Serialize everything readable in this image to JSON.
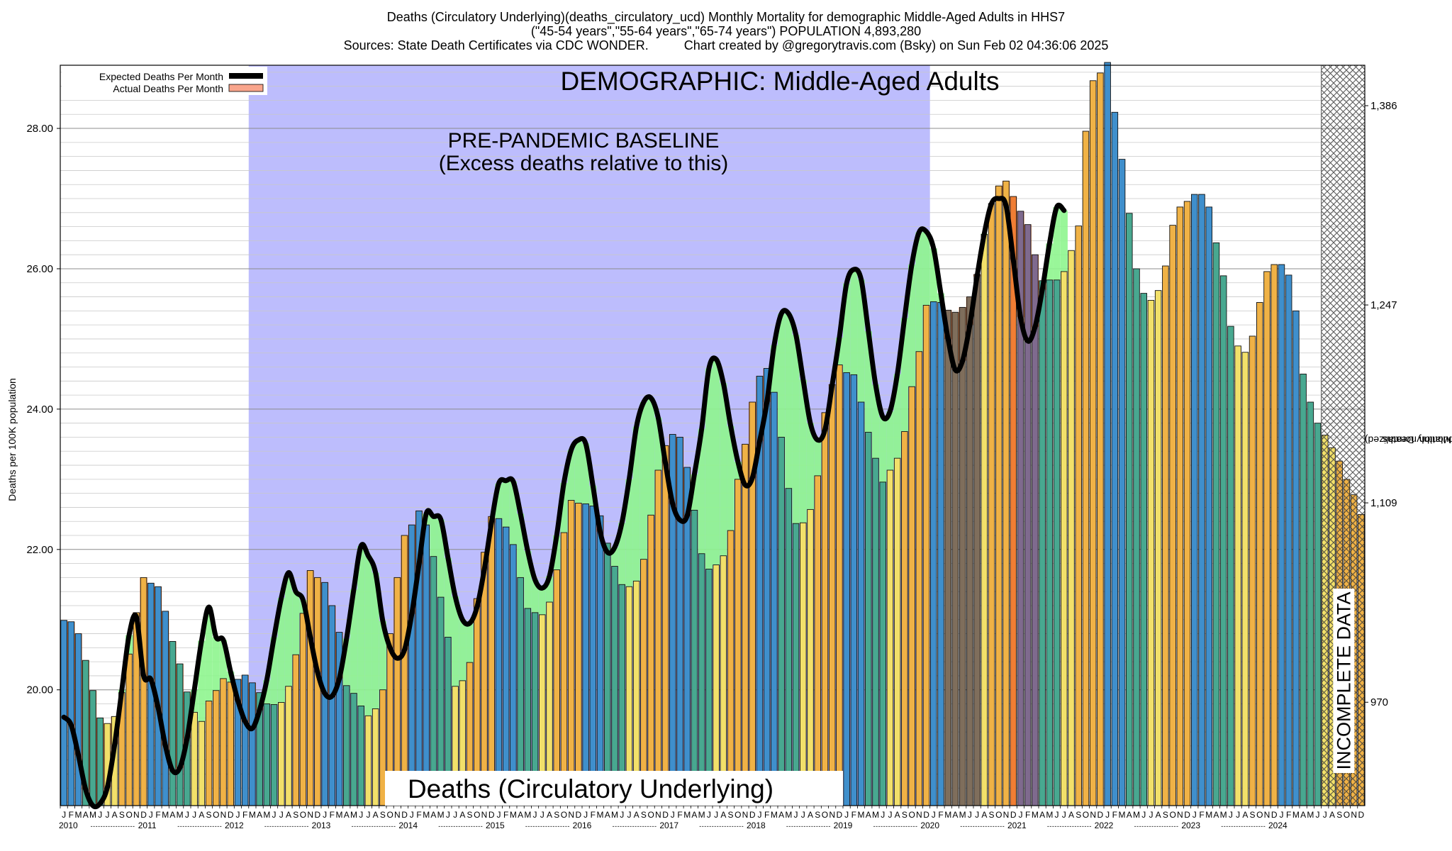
{
  "header": {
    "line1": "Deaths (Circulatory Underlying)(deaths_circulatory_ucd) Monthly Mortality for demographic Middle-Aged Adults in HHS7",
    "line2": "(\"45-54 years\",\"55-64 years\",\"65-74 years\") POPULATION 4,893,280",
    "line3": "Sources: State Death Certificates via CDC WONDER.          Chart created by @gregorytravis.com (Bsky) on Sun Feb 02 04:36:06 2025"
  },
  "colors": {
    "baseline_region": "#bdbdfd",
    "excess": "#fc7a30",
    "deficit": "#8ef58e",
    "expected_line": "#000000",
    "incomplete_hatch": "#444444"
  },
  "chart_data": {
    "type": "bar",
    "title": "Deaths (Circulatory Underlying)",
    "demographic_label": "DEMOGRAPHIC: Middle-Aged Adults",
    "baseline_label_1": "PRE-PANDEMIC BASELINE",
    "baseline_label_2": "(Excess deaths relative to this)",
    "incomplete_label": "INCOMPLETE DATA",
    "ylabel": "Deaths per 100K population",
    "ylabel_right_1": "Total Monthly Deaths",
    "ylabel_right_2": "(2023 population normalized)",
    "ylim": [
      18.35,
      28.9
    ],
    "yticks_left": [
      "20.00",
      "22.00",
      "24.00",
      "26.00",
      "28.00"
    ],
    "yticks_left_values": [
      20,
      22,
      24,
      26,
      28
    ],
    "yticks_right": [
      "970",
      "1,109",
      "1,247",
      "1,386"
    ],
    "yticks_right_values": [
      19.823,
      22.664,
      25.484,
      28.324
    ],
    "grid": true,
    "legend_position": "top-left",
    "legend": [
      "Expected Deaths Per Month",
      "Actual Deaths Per Month"
    ],
    "month_letters": [
      "J",
      "F",
      "M",
      "A",
      "M",
      "J",
      "J",
      "A",
      "S",
      "O",
      "N",
      "D"
    ],
    "years": [
      "2010",
      "2011",
      "2012",
      "2013",
      "2014",
      "2015",
      "2016",
      "2017",
      "2018",
      "2019",
      "2020",
      "2021",
      "2022",
      "2023",
      "2024"
    ],
    "start": "2010-01",
    "baseline_period": [
      "2012-03",
      "2019-12"
    ],
    "incomplete_from": "2024-07",
    "actual": [
      20.99,
      20.97,
      20.8,
      20.42,
      19.99,
      19.6,
      19.52,
      19.62,
      19.96,
      20.51,
      21.1,
      21.6,
      21.52,
      21.47,
      21.12,
      20.69,
      20.37,
      19.97,
      19.68,
      19.55,
      19.84,
      19.99,
      20.16,
      20.11,
      20.15,
      20.21,
      20.1,
      19.96,
      19.8,
      19.79,
      19.82,
      20.05,
      20.5,
      21.09,
      21.7,
      21.6,
      21.53,
      21.2,
      20.82,
      20.06,
      19.95,
      19.77,
      19.63,
      19.73,
      20.0,
      20.8,
      21.6,
      22.2,
      22.35,
      22.55,
      22.35,
      21.9,
      21.32,
      20.75,
      20.05,
      20.13,
      20.39,
      21.3,
      21.96,
      22.47,
      22.44,
      22.32,
      22.07,
      21.6,
      21.16,
      21.1,
      21.07,
      21.25,
      21.71,
      22.24,
      22.7,
      22.66,
      22.65,
      22.62,
      22.48,
      22.09,
      21.76,
      21.5,
      21.47,
      21.55,
      21.86,
      22.49,
      23.13,
      23.48,
      23.64,
      23.6,
      23.17,
      22.56,
      21.94,
      21.72,
      21.78,
      21.91,
      22.27,
      23.0,
      23.5,
      24.1,
      24.47,
      24.58,
      24.24,
      23.6,
      22.87,
      22.37,
      22.38,
      22.57,
      23.05,
      23.95,
      24.35,
      24.63,
      24.52,
      24.49,
      24.1,
      23.67,
      23.3,
      22.96,
      23.13,
      23.3,
      23.68,
      24.32,
      24.82,
      25.48,
      25.53,
      25.52,
      25.41,
      25.38,
      25.45,
      25.6,
      25.92,
      26.49,
      26.93,
      27.18,
      27.25,
      27.03,
      26.82,
      26.63,
      26.2,
      25.83,
      25.84,
      25.84,
      25.96,
      26.26,
      26.61,
      27.96,
      28.68,
      28.79,
      28.94,
      28.23,
      27.56,
      26.79,
      26.0,
      25.65,
      25.55,
      25.69,
      26.04,
      26.62,
      26.88,
      26.96,
      27.06,
      27.06,
      26.88,
      26.37,
      25.9,
      25.18,
      24.9,
      24.81,
      25.04,
      25.52,
      25.96,
      26.06,
      26.06,
      25.91,
      25.4,
      24.5,
      24.1,
      23.8,
      23.63,
      23.45,
      23.26,
      23.0,
      22.78,
      22.5
    ],
    "expected": [
      19.61,
      19.5,
      19.07,
      18.58,
      18.35,
      18.38,
      18.61,
      19.22,
      20.0,
      20.78,
      21.04,
      20.2,
      20.15,
      19.75,
      19.21,
      18.85,
      18.89,
      19.31,
      20.0,
      20.7,
      21.18,
      20.75,
      20.71,
      20.26,
      19.85,
      19.55,
      19.45,
      19.71,
      20.14,
      20.75,
      21.31,
      21.67,
      21.4,
      21.28,
      20.75,
      20.25,
      19.95,
      19.91,
      20.16,
      20.73,
      21.43,
      22.05,
      21.91,
      21.67,
      20.98,
      20.6,
      20.45,
      20.57,
      21.08,
      21.79,
      22.51,
      22.47,
      22.43,
      21.88,
      21.33,
      21.0,
      20.95,
      21.18,
      21.71,
      22.38,
      22.94,
      22.98,
      22.97,
      22.51,
      21.98,
      21.57,
      21.45,
      21.62,
      22.2,
      22.95,
      23.42,
      23.56,
      23.51,
      22.91,
      22.25,
      21.96,
      22.03,
      22.38,
      23.0,
      23.75,
      24.1,
      24.16,
      23.88,
      23.23,
      22.65,
      22.42,
      22.48,
      23.07,
      23.72,
      24.58,
      24.71,
      24.37,
      23.76,
      23.25,
      22.92,
      23.02,
      23.54,
      24.1,
      24.91,
      25.36,
      25.36,
      25.06,
      24.42,
      23.8,
      23.56,
      23.7,
      24.34,
      25.02,
      25.79,
      25.99,
      25.85,
      25.11,
      24.35,
      23.89,
      23.97,
      24.5,
      25.3,
      26.06,
      26.52,
      26.53,
      26.29,
      25.65,
      25.0,
      24.56,
      24.69,
      25.2,
      25.89,
      26.5,
      26.93,
      27.0,
      26.9,
      26.13,
      25.31,
      24.97,
      25.17,
      25.7,
      26.36,
      26.88,
      26.83
    ]
  }
}
